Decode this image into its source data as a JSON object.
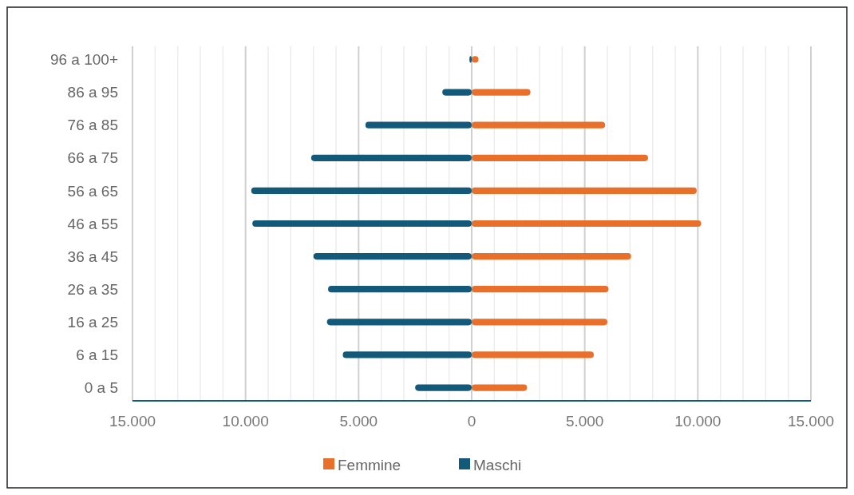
{
  "chart_data": {
    "type": "bar",
    "orientation": "horizontal",
    "categories": [
      "96 a 100+",
      "86 a 95",
      "76 a 85",
      "66 a 75",
      "56 a 65",
      "46 a 55",
      "36 a 45",
      "26 a 35",
      "16 a 25",
      "6 a 15",
      "0 a 5"
    ],
    "series": [
      {
        "name": "Femmine",
        "color": "#e8702a",
        "values": [
          300,
          2600,
          5900,
          7800,
          9950,
          10150,
          7050,
          6050,
          6000,
          5400,
          2450
        ]
      },
      {
        "name": "Maschi",
        "color": "#135a7a",
        "values": [
          -100,
          -1300,
          -4700,
          -7100,
          -9750,
          -9700,
          -7000,
          -6350,
          -6400,
          -5700,
          -2500
        ]
      }
    ],
    "xlim": [
      -15000,
      15000
    ],
    "xticks": [
      {
        "value": -15000,
        "label": "15.000"
      },
      {
        "value": -14000,
        "label": null
      },
      {
        "value": -13000,
        "label": null
      },
      {
        "value": -12000,
        "label": null
      },
      {
        "value": -11000,
        "label": null
      },
      {
        "value": -10000,
        "label": "10.000"
      },
      {
        "value": -9000,
        "label": null
      },
      {
        "value": -8000,
        "label": null
      },
      {
        "value": -7000,
        "label": null
      },
      {
        "value": -6000,
        "label": null
      },
      {
        "value": -5000,
        "label": "5.000"
      },
      {
        "value": -4000,
        "label": null
      },
      {
        "value": -3000,
        "label": null
      },
      {
        "value": -2000,
        "label": null
      },
      {
        "value": -1000,
        "label": null
      },
      {
        "value": 0,
        "label": "0"
      },
      {
        "value": 1000,
        "label": null
      },
      {
        "value": 2000,
        "label": null
      },
      {
        "value": 3000,
        "label": null
      },
      {
        "value": 4000,
        "label": null
      },
      {
        "value": 5000,
        "label": "5.000"
      },
      {
        "value": 6000,
        "label": null
      },
      {
        "value": 7000,
        "label": null
      },
      {
        "value": 8000,
        "label": null
      },
      {
        "value": 9000,
        "label": null
      },
      {
        "value": 10000,
        "label": "10.000"
      },
      {
        "value": 11000,
        "label": null
      },
      {
        "value": 12000,
        "label": null
      },
      {
        "value": 13000,
        "label": null
      },
      {
        "value": 14000,
        "label": null
      },
      {
        "value": 15000,
        "label": "15.000"
      }
    ],
    "stacked": true,
    "grid": "x",
    "legend": "bottom"
  }
}
